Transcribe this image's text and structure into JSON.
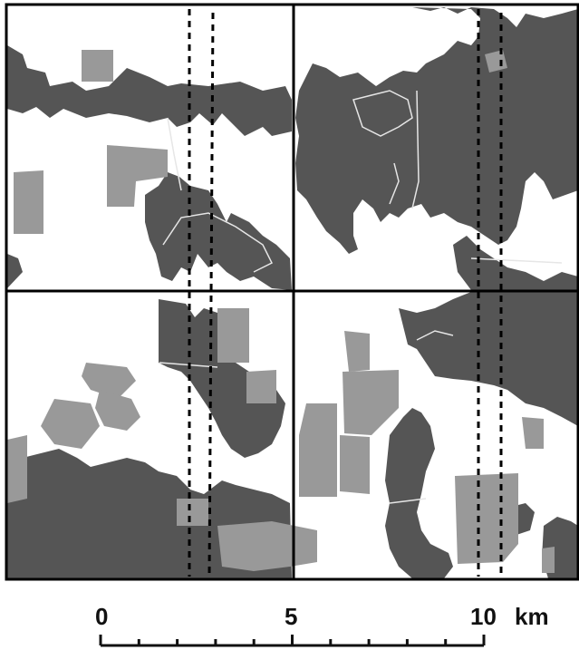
{
  "map": {
    "colors": {
      "background": "#ffffff",
      "forest_dark": "#555555",
      "patch_light": "#999999",
      "grid_line": "#000000",
      "trail_line": "#dddddd"
    },
    "grid": {
      "columns": 2,
      "rows": 2
    },
    "transects": 2
  },
  "scale_bar": {
    "labels": [
      "0",
      "5",
      "10"
    ],
    "unit": "km",
    "max_value": 10,
    "minor_divisions": 10
  }
}
